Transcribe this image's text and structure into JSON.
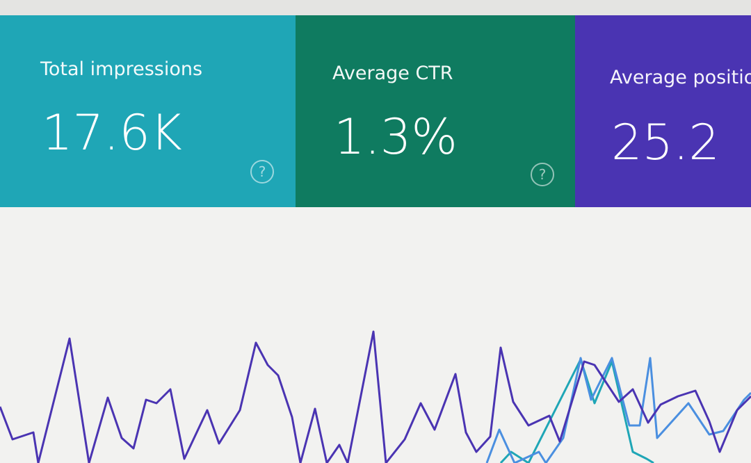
{
  "cards": [
    {
      "label": "Total impressions",
      "value": "17.6K"
    },
    {
      "label": "Average CTR",
      "value": "1.3%"
    },
    {
      "label": "Average position",
      "value": "25.2"
    }
  ]
}
